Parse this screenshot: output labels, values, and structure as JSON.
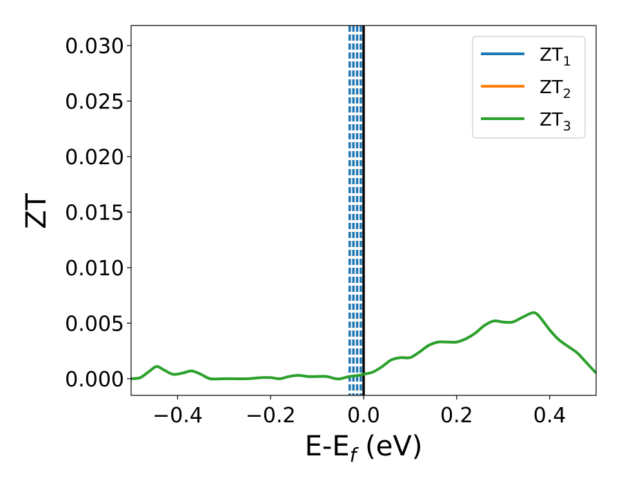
{
  "chart_data": {
    "type": "line",
    "title": "",
    "xlabel": "E-E",
    "xlabel_sub": "f",
    "xlabel_unit": " (eV)",
    "ylabel": "ZT",
    "xlim": [
      -0.5,
      0.5
    ],
    "ylim": [
      -0.0015,
      0.0318
    ],
    "xticks": [
      -0.4,
      -0.2,
      0.0,
      0.2,
      0.4
    ],
    "xtick_labels": [
      "−0.4",
      "−0.2",
      "0.0",
      "0.2",
      "0.4"
    ],
    "yticks": [
      0.0,
      0.005,
      0.01,
      0.015,
      0.02,
      0.025,
      0.03
    ],
    "ytick_labels": [
      "0.000",
      "0.005",
      "0.010",
      "0.015",
      "0.020",
      "0.025",
      "0.030"
    ],
    "grid": false,
    "legend_position": "top-right",
    "series": [
      {
        "name": "ZT",
        "sub": "1",
        "color": "#1f77b4",
        "x": [],
        "y": []
      },
      {
        "name": "ZT",
        "sub": "2",
        "color": "#ff7f0e",
        "x": [],
        "y": []
      },
      {
        "name": "ZT",
        "sub": "3",
        "color": "#2ca02c",
        "x": [
          -0.5,
          -0.48,
          -0.46,
          -0.445,
          -0.43,
          -0.41,
          -0.39,
          -0.37,
          -0.35,
          -0.33,
          -0.3,
          -0.25,
          -0.22,
          -0.2,
          -0.18,
          -0.16,
          -0.14,
          -0.12,
          -0.1,
          -0.08,
          -0.06,
          -0.05,
          -0.03,
          -0.01,
          0.0,
          0.02,
          0.04,
          0.06,
          0.08,
          0.1,
          0.12,
          0.14,
          0.16,
          0.18,
          0.2,
          0.22,
          0.24,
          0.26,
          0.28,
          0.3,
          0.32,
          0.34,
          0.36,
          0.37,
          0.38,
          0.4,
          0.42,
          0.44,
          0.46,
          0.48,
          0.5
        ],
        "y": [
          0.0,
          0.0001,
          0.0007,
          0.0011,
          0.0008,
          0.0004,
          0.0005,
          0.0007,
          0.0004,
          0.0,
          0.0,
          0.0,
          0.0001,
          0.0001,
          0.0,
          0.0002,
          0.0003,
          0.0002,
          0.0002,
          0.0002,
          0.0,
          0.0,
          0.0002,
          0.0003,
          0.0004,
          0.0006,
          0.0011,
          0.0017,
          0.0019,
          0.0019,
          0.0024,
          0.003,
          0.0033,
          0.0033,
          0.0033,
          0.0036,
          0.0041,
          0.0048,
          0.0052,
          0.0051,
          0.0051,
          0.0055,
          0.0059,
          0.0059,
          0.0055,
          0.0044,
          0.0035,
          0.0029,
          0.0023,
          0.0014,
          0.0005
        ]
      }
    ],
    "reference_lines": [
      {
        "x": 0.0,
        "color": "#000000",
        "style": "solid"
      },
      {
        "x": -0.006,
        "color": "#1f77b4",
        "style": "dashed"
      },
      {
        "x": -0.014,
        "color": "#1f77b4",
        "style": "dashed"
      },
      {
        "x": -0.022,
        "color": "#1f77b4",
        "style": "dashed"
      },
      {
        "x": -0.03,
        "color": "#1f77b4",
        "style": "dashed"
      }
    ]
  }
}
